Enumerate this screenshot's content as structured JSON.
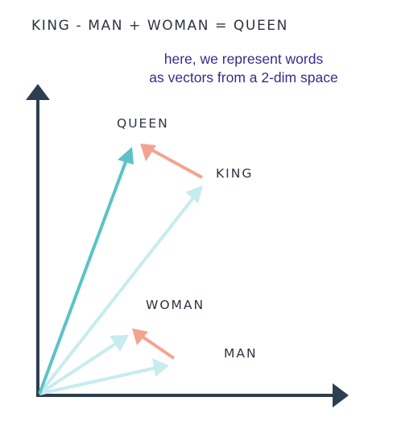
{
  "equation": "KING - MAN + WOMAN = QUEEN",
  "note": {
    "line1": "here, we represent words",
    "line2": "as vectors from a 2-dim space"
  },
  "words": {
    "queen": "QUEEN",
    "king": "KING",
    "woman": "WOMAN",
    "man": "MAN"
  },
  "colors": {
    "axis": "#2c3e50",
    "queen_vector": "#5bc3c7",
    "word_vector": "#c6ecee",
    "difference_vector": "#f4a390",
    "text": "#2e3440",
    "note_text": "#3a2a8c"
  }
}
